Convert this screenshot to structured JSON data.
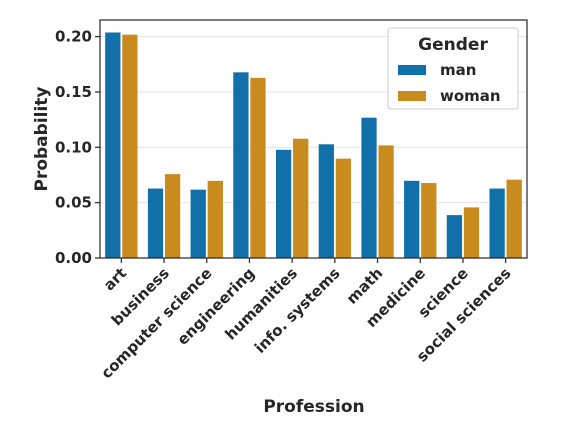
{
  "chart_data": {
    "type": "bar",
    "title": "",
    "xlabel": "Profession",
    "ylabel": "Probability",
    "ylim": [
      0,
      0.215
    ],
    "yticks": [
      "0.00",
      "0.05",
      "0.10",
      "0.15",
      "0.20"
    ],
    "grid": "horizontal",
    "legend_placement": "top-right",
    "legend_title": "Gender",
    "categories": [
      "art",
      "business",
      "computer science",
      "engineering",
      "humanities",
      "info. systems",
      "math",
      "medicine",
      "science",
      "social sciences"
    ],
    "series": [
      {
        "name": "man",
        "color": "#1170aa",
        "values": [
          0.204,
          0.063,
          0.062,
          0.168,
          0.098,
          0.103,
          0.127,
          0.07,
          0.039,
          0.063
        ]
      },
      {
        "name": "woman",
        "color": "#c98a1e",
        "values": [
          0.202,
          0.076,
          0.07,
          0.163,
          0.108,
          0.09,
          0.102,
          0.068,
          0.046,
          0.071
        ]
      }
    ]
  }
}
